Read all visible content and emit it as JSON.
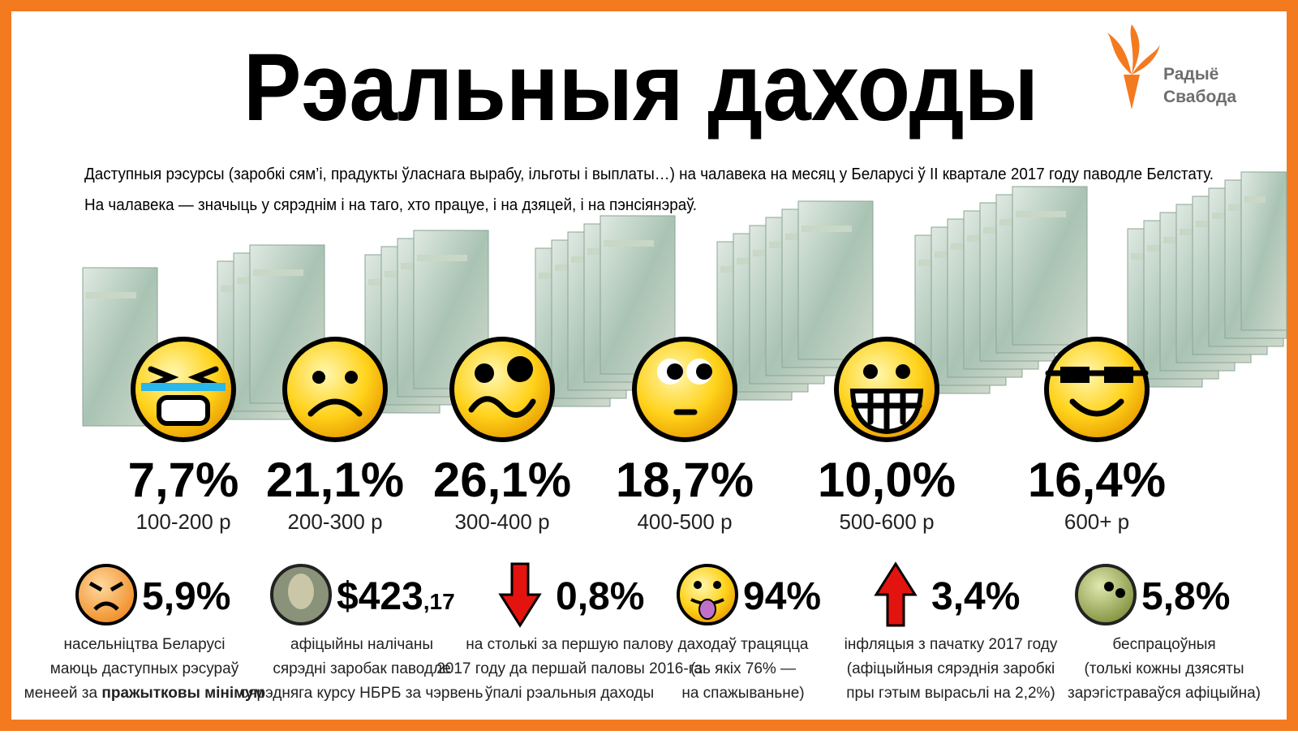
{
  "header": {
    "title": "Рэальныя даходы",
    "subtitle": [
      "Даступныя рэсурсы (заробкі сям’і, прадукты ўласнага вырабу, ільготы і выплаты…) на чалавека на месяц у Беларусі ў ІІ квартале 2017 году паводле Белстату.",
      "На чалавека — значыць у сярэднім і на таго, хто працуе, і на дзяцей, і на пэнсіянэраў."
    ]
  },
  "logo": {
    "line1": "Радыё",
    "line2": "Свабода"
  },
  "groups": [
    {
      "percent": "7,7%",
      "range": "100-200 р"
    },
    {
      "percent": "21,1%",
      "range": "200-300 р"
    },
    {
      "percent": "26,1%",
      "range": "300-400 р"
    },
    {
      "percent": "18,7%",
      "range": "400-500 р"
    },
    {
      "percent": "10,0%",
      "range": "500-600 р"
    },
    {
      "percent": "16,4%",
      "range": "600+ р"
    }
  ],
  "facts": [
    {
      "value": "5,9%",
      "lines": [
        "насельніцтва Беларусі",
        "маюць даступных рэсураў"
      ],
      "last_line": [
        "менеей за ",
        "пражытковы мінімум"
      ]
    },
    {
      "value": "$423",
      "value_small": ",17",
      "lines": [
        "афіцыйны налічаны",
        "сярэдні заробак паводле",
        "сярэдняга курсу НБРБ за чэрвень"
      ]
    },
    {
      "value": "0,8%",
      "lines": [
        "на столькі за першую палову",
        "2017 году да першай паловы 2016-га",
        "ўпалі рэальныя даходы"
      ]
    },
    {
      "value": "94%",
      "lines": [
        "даходаў трацяцца",
        "(зь якіх 76% —",
        "на спажываньне)"
      ]
    },
    {
      "value": "3,4%",
      "lines": [
        "інфляцыя з пачатку 2017 году",
        "(афіцыйныя сярэднія заробкі",
        "пры гэтым вырасьлі на 2,2%)"
      ]
    },
    {
      "value": "5,8%",
      "lines": [
        "беспрацоўныя",
        "(толькі кожны дзясяты",
        "зарэгістраваўся афіцыйна)"
      ]
    }
  ]
}
